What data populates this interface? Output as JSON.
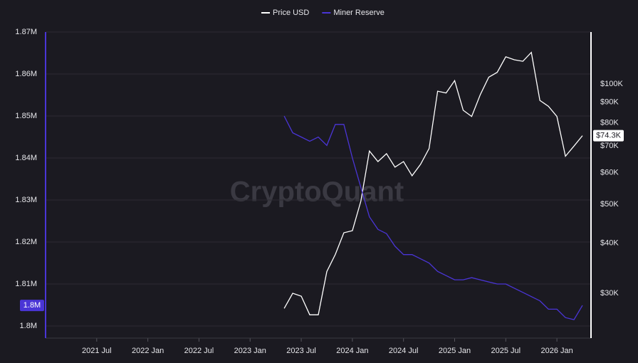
{
  "chart_data": {
    "type": "line",
    "legend": "top",
    "watermark": "CryptoQuant",
    "x": [
      "2023-05",
      "2023-06",
      "2023-07",
      "2023-08",
      "2023-09",
      "2023-10",
      "2023-11",
      "2023-12",
      "2024-01",
      "2024-02",
      "2024-03",
      "2024-04",
      "2024-05",
      "2024-06",
      "2024-07",
      "2024-08",
      "2024-09",
      "2024-10",
      "2024-11",
      "2024-12",
      "2025-01",
      "2025-02",
      "2025-03",
      "2025-04",
      "2025-05",
      "2025-06",
      "2025-07",
      "2025-08",
      "2025-09",
      "2025-10",
      "2025-11",
      "2025-12",
      "2026-01",
      "2026-02",
      "2026-03",
      "2026-04"
    ],
    "xlim": [
      "2021-01",
      "2026-05"
    ],
    "xticks": [
      {
        "value": "2021-07",
        "label": "2021 Jul"
      },
      {
        "value": "2022-01",
        "label": "2022 Jan"
      },
      {
        "value": "2022-07",
        "label": "2022 Jul"
      },
      {
        "value": "2023-01",
        "label": "2023 Jan"
      },
      {
        "value": "2023-07",
        "label": "2023 Jul"
      },
      {
        "value": "2024-01",
        "label": "2024 Jan"
      },
      {
        "value": "2024-07",
        "label": "2024 Jul"
      },
      {
        "value": "2025-01",
        "label": "2025 Jan"
      },
      {
        "value": "2025-07",
        "label": "2025 Jul"
      },
      {
        "value": "2026-01",
        "label": "2026 Jan"
      }
    ],
    "ylim": [
      1800000,
      1870000
    ],
    "yticks": [
      {
        "value": 1800000,
        "label": "1.8M"
      },
      {
        "value": 1810000,
        "label": "1.81M"
      },
      {
        "value": 1820000,
        "label": "1.82M"
      },
      {
        "value": 1830000,
        "label": "1.83M"
      },
      {
        "value": 1840000,
        "label": "1.84M"
      },
      {
        "value": 1850000,
        "label": "1.85M"
      },
      {
        "value": 1860000,
        "label": "1.86M"
      },
      {
        "value": 1870000,
        "label": "1.87M"
      }
    ],
    "y2lim": [
      24850,
      134900
    ],
    "y2scale": "log",
    "y2ticks": [
      {
        "value": 30000,
        "label": "$30K"
      },
      {
        "value": 40000,
        "label": "$40K"
      },
      {
        "value": 50000,
        "label": "$50K"
      },
      {
        "value": 60000,
        "label": "$60K"
      },
      {
        "value": 70000,
        "label": "$70K"
      },
      {
        "value": 80000,
        "label": "$80K"
      },
      {
        "value": 90000,
        "label": "$90K"
      },
      {
        "value": 100000,
        "label": "$100K"
      }
    ],
    "grid": true,
    "series": [
      {
        "name": "Price USD",
        "color": "#ffffff",
        "axis": "y2",
        "values": [
          27500,
          30000,
          29500,
          26500,
          26500,
          34000,
          37500,
          42500,
          43000,
          51000,
          68000,
          64000,
          67000,
          62000,
          64000,
          59000,
          63000,
          69000,
          96000,
          95000,
          102000,
          86000,
          83000,
          94000,
          104000,
          107000,
          117000,
          115000,
          114000,
          120000,
          91000,
          88000,
          83000,
          66000,
          70000,
          74300
        ],
        "value_labels": [
          null,
          null,
          null,
          null,
          null,
          null,
          null,
          null,
          null,
          null,
          null,
          null,
          null,
          null,
          null,
          null,
          null,
          null,
          null,
          null,
          null,
          null,
          null,
          null,
          null,
          null,
          null,
          null,
          null,
          null,
          null,
          null,
          null,
          null,
          null,
          "$74.3K"
        ]
      },
      {
        "name": "Miner Reserve",
        "color": "#4a35d6",
        "axis": "y",
        "values": [
          1850000,
          1846000,
          1845000,
          1844000,
          1845000,
          1843000,
          1848000,
          1848000,
          1840000,
          1833000,
          1826000,
          1823000,
          1822000,
          1819000,
          1817000,
          1817000,
          1816000,
          1815000,
          1813000,
          1812000,
          1811000,
          1811000,
          1811500,
          1811000,
          1810500,
          1810000,
          1810000,
          1809000,
          1808000,
          1807000,
          1806000,
          1804000,
          1804000,
          1802000,
          1801500,
          1804900
        ],
        "value_labels": [
          null,
          null,
          null,
          null,
          null,
          null,
          null,
          null,
          null,
          null,
          null,
          null,
          null,
          null,
          null,
          null,
          null,
          null,
          null,
          null,
          null,
          null,
          null,
          null,
          null,
          null,
          null,
          null,
          null,
          null,
          null,
          null,
          null,
          null,
          null,
          "1.8M"
        ]
      }
    ]
  }
}
